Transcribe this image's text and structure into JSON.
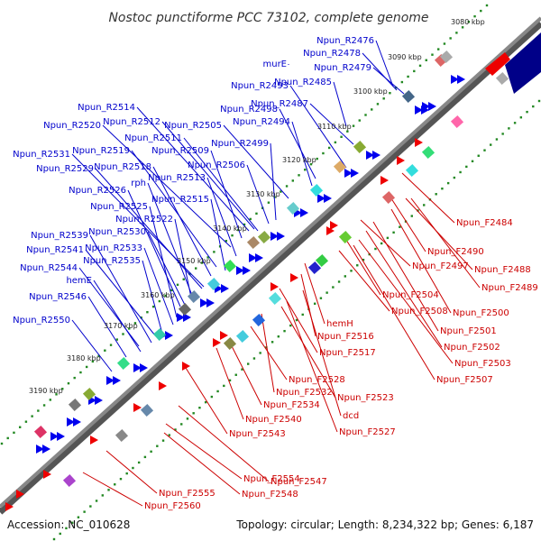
{
  "title": "Nostoc punctiforme PCC 73102, complete genome",
  "footer": {
    "accession": "Accession: NC_010628",
    "summary": "Topology: circular; Length: 8,234,322 bp; Genes: 6,187"
  },
  "colors": {
    "reverse_label": "#0000cc",
    "forward_label": "#cc0000",
    "reverse_strand": "#0000ee",
    "forward_strand": "#ee0000",
    "backbone": "#888888",
    "tick_dots": "#228822"
  },
  "kbp_ticks": [
    "3080 kbp",
    "3090 kbp",
    "3100 kbp",
    "3110 kbp",
    "3120 kbp",
    "3130 kbp",
    "3140 kbp",
    "3150 kbp",
    "3160 kbp",
    "3170 kbp",
    "3180 kbp",
    "3190 kbp"
  ],
  "reverse_genes": [
    "Npun_R2476",
    "Npun_R2478",
    "murE",
    "Npun_R2479",
    "Npun_R2485",
    "Npun_R2493",
    "Npun_R2487",
    "Npun_R2498",
    "Npun_R2494",
    "Npun_R2514",
    "Npun_R2505",
    "Npun_R2512",
    "Npun_R2520",
    "Npun_R2511",
    "Npun_R2499",
    "Npun_R2509",
    "Npun_R2519",
    "Npun_R2531",
    "Npun_R2518",
    "Npun_R2506",
    "Npun_R2529",
    "Npun_R2513",
    "rph",
    "Npun_R2526",
    "Npun_R2515",
    "Npun_R2525",
    "Npun_R2522",
    "Npun_R2539",
    "Npun_R2530",
    "Npun_R2533",
    "Npun_R2541",
    "Npun_R2535",
    "Npun_R2544",
    "hemE",
    "Npun_R2546",
    "Npun_R2550"
  ],
  "forward_genes": [
    "Npun_F2484",
    "Npun_F2490",
    "Npun_F2488",
    "Npun_F2497",
    "Npun_F2489",
    "Npun_F2504",
    "Npun_F2508",
    "Npun_F2500",
    "hemH",
    "Npun_F2501",
    "Npun_F2516",
    "Npun_F2502",
    "Npun_F2517",
    "Npun_F2503",
    "Npun_F2507",
    "Npun_F2528",
    "Npun_F2532",
    "Npun_F2523",
    "Npun_F2534",
    "dcd",
    "Npun_F2540",
    "Npun_F2527",
    "Npun_F2543",
    "Npun_F2554",
    "Npun_F2547",
    "Npun_F2555",
    "Npun_F2548",
    "Npun_F2560"
  ]
}
